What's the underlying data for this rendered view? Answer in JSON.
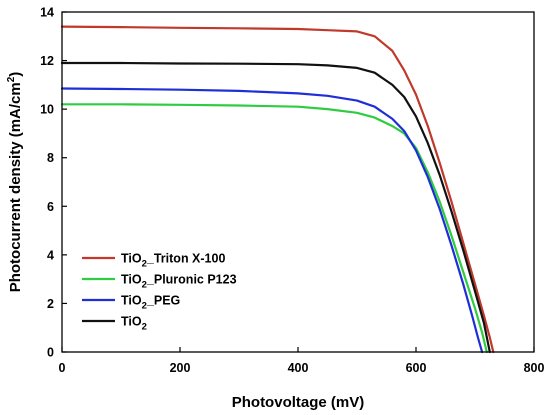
{
  "chart_data": {
    "type": "line",
    "xlabel": "Photovoltage (mV)",
    "ylabel_main": "Photocurrent density (mA/cm",
    "ylabel_sup": "2",
    "ylabel_end": ")",
    "xlim": [
      0,
      800
    ],
    "ylim": [
      0,
      14
    ],
    "xticks": [
      0,
      200,
      400,
      600,
      800
    ],
    "yticks": [
      0,
      2,
      4,
      6,
      8,
      10,
      12,
      14
    ],
    "xtick_labels": [
      "0",
      "200",
      "400",
      "600",
      "800"
    ],
    "ytick_labels": [
      "0",
      "2",
      "4",
      "6",
      "8",
      "10",
      "12",
      "14"
    ],
    "legend_position": "lower-left",
    "series": [
      {
        "name_main": "TiO",
        "name_sub": "2",
        "name_rest": "_Triton X-100",
        "color": "#c0392b",
        "x": [
          0,
          100,
          200,
          300,
          400,
          450,
          500,
          530,
          560,
          580,
          600,
          620,
          640,
          660,
          680,
          700,
          715,
          725,
          731
        ],
        "y": [
          13.4,
          13.38,
          13.35,
          13.33,
          13.3,
          13.25,
          13.2,
          13.0,
          12.4,
          11.6,
          10.6,
          9.3,
          7.8,
          6.2,
          4.5,
          2.8,
          1.5,
          0.6,
          0
        ]
      },
      {
        "name_main": "TiO",
        "name_sub": "2",
        "name_rest": "_Pluronic P123",
        "color": "#2ecc40",
        "x": [
          0,
          100,
          200,
          300,
          400,
          450,
          500,
          530,
          560,
          580,
          600,
          620,
          640,
          660,
          680,
          700,
          712,
          720
        ],
        "y": [
          10.2,
          10.2,
          10.18,
          10.15,
          10.1,
          10.0,
          9.85,
          9.65,
          9.3,
          9.0,
          8.4,
          7.4,
          6.2,
          4.8,
          3.3,
          1.8,
          0.8,
          0
        ]
      },
      {
        "name_main": "TiO",
        "name_sub": "2",
        "name_rest": "_PEG",
        "color": "#1f2fd6",
        "x": [
          0,
          100,
          200,
          300,
          400,
          450,
          500,
          530,
          560,
          580,
          600,
          620,
          640,
          660,
          680,
          695,
          705,
          712
        ],
        "y": [
          10.85,
          10.83,
          10.8,
          10.75,
          10.65,
          10.55,
          10.35,
          10.1,
          9.6,
          9.1,
          8.3,
          7.2,
          5.9,
          4.4,
          2.8,
          1.5,
          0.6,
          0
        ]
      },
      {
        "name_main": "TiO",
        "name_sub": "2",
        "name_rest": "",
        "color": "#111111",
        "x": [
          0,
          100,
          200,
          300,
          400,
          450,
          500,
          530,
          560,
          580,
          600,
          620,
          640,
          660,
          680,
          700,
          715,
          725
        ],
        "y": [
          11.9,
          11.9,
          11.88,
          11.87,
          11.85,
          11.8,
          11.7,
          11.5,
          11.0,
          10.5,
          9.7,
          8.6,
          7.3,
          5.8,
          4.2,
          2.5,
          1.2,
          0
        ]
      }
    ]
  }
}
